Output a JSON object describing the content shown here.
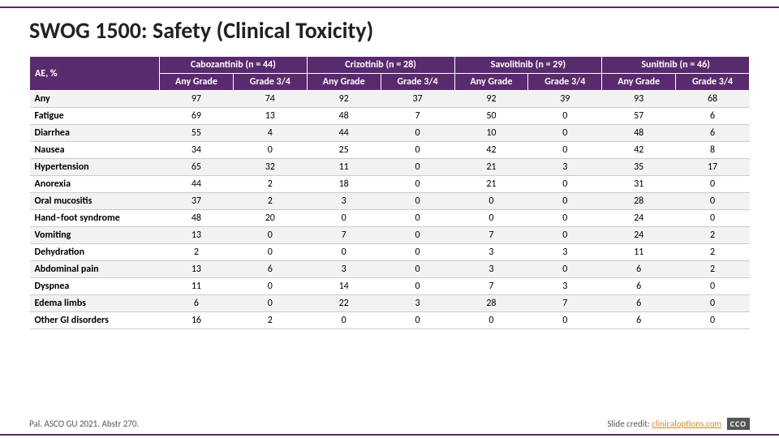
{
  "title": "SWOG 1500: Safety (Clinical Toxicity)",
  "colors": {
    "accent": "#5a2a6e",
    "row_odd": "#f2f2f2",
    "row_even": "#ffffff",
    "header_text": "#ffffff",
    "title_text": "#222222",
    "link": "#d08a2a"
  },
  "typography": {
    "title_fontsize": 28,
    "header_fontsize": 12,
    "cell_fontsize": 12,
    "footer_fontsize": 11
  },
  "table": {
    "row_header": "AE, %",
    "drugs": [
      {
        "name": "Cabozantinib (n = 44)",
        "sub": [
          "Any Grade",
          "Grade 3/4"
        ]
      },
      {
        "name": "Crizotinib (n = 28)",
        "sub": [
          "Any Grade",
          "Grade 3/4"
        ]
      },
      {
        "name": "Savolitinib (n = 29)",
        "sub": [
          "Any Grade",
          "Grade 3/4"
        ]
      },
      {
        "name": "Sunitinib (n = 46)",
        "sub": [
          "Any Grade",
          "Grade 3/4"
        ]
      }
    ],
    "rows": [
      {
        "ae": "Any",
        "v": [
          97,
          74,
          92,
          37,
          92,
          39,
          93,
          68
        ]
      },
      {
        "ae": "Fatigue",
        "v": [
          69,
          13,
          48,
          7,
          50,
          0,
          57,
          6
        ]
      },
      {
        "ae": "Diarrhea",
        "v": [
          55,
          4,
          44,
          0,
          10,
          0,
          48,
          6
        ]
      },
      {
        "ae": "Nausea",
        "v": [
          34,
          0,
          25,
          0,
          42,
          0,
          42,
          8
        ]
      },
      {
        "ae": "Hypertension",
        "v": [
          65,
          32,
          11,
          0,
          21,
          3,
          35,
          17
        ]
      },
      {
        "ae": "Anorexia",
        "v": [
          44,
          2,
          18,
          0,
          21,
          0,
          31,
          0
        ]
      },
      {
        "ae": "Oral mucositis",
        "v": [
          37,
          2,
          3,
          0,
          0,
          0,
          28,
          0
        ]
      },
      {
        "ae": "Hand–foot syndrome",
        "v": [
          48,
          20,
          0,
          0,
          0,
          0,
          24,
          0
        ]
      },
      {
        "ae": "Vomiting",
        "v": [
          13,
          0,
          7,
          0,
          7,
          0,
          24,
          2
        ]
      },
      {
        "ae": "Dehydration",
        "v": [
          2,
          0,
          0,
          0,
          3,
          3,
          11,
          2
        ]
      },
      {
        "ae": "Abdominal pain",
        "v": [
          13,
          6,
          3,
          0,
          3,
          0,
          6,
          2
        ]
      },
      {
        "ae": "Dyspnea",
        "v": [
          11,
          0,
          14,
          0,
          7,
          3,
          6,
          0
        ]
      },
      {
        "ae": "Edema limbs",
        "v": [
          6,
          0,
          22,
          3,
          28,
          7,
          6,
          0
        ]
      },
      {
        "ae": "Other GI disorders",
        "v": [
          16,
          2,
          0,
          0,
          0,
          0,
          6,
          0
        ]
      }
    ]
  },
  "footer": {
    "reference": "Pal. ASCO GU 2021. Abstr 270.",
    "credit_prefix": "Slide credit: ",
    "credit_link_text": "clinicaloptions.com",
    "badge": "CCO"
  }
}
